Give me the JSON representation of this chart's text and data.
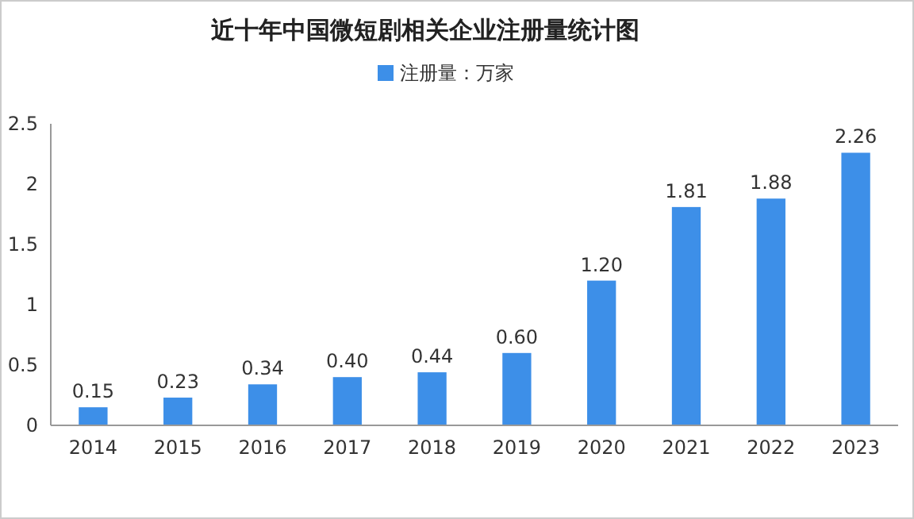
{
  "chart_data": {
    "type": "bar",
    "title": "近十年中国微短剧相关企业注册量统计图",
    "categories": [
      "2014",
      "2015",
      "2016",
      "2017",
      "2018",
      "2019",
      "2020",
      "2021",
      "2022",
      "2023"
    ],
    "series": [
      {
        "name": "注册量：万家",
        "color": "#3d8fe8",
        "values": [
          0.15,
          0.23,
          0.34,
          0.4,
          0.44,
          0.6,
          1.2,
          1.81,
          1.88,
          2.26
        ],
        "value_labels": [
          "0.15",
          "0.23",
          "0.34",
          "0.40",
          "0.44",
          "0.60",
          "1.20",
          "1.81",
          "1.88",
          "2.26"
        ]
      }
    ],
    "ylim": [
      0,
      2.5
    ],
    "yticks": [
      0,
      0.5,
      1,
      1.5,
      2,
      2.5
    ],
    "legend": "top",
    "grid": false
  }
}
